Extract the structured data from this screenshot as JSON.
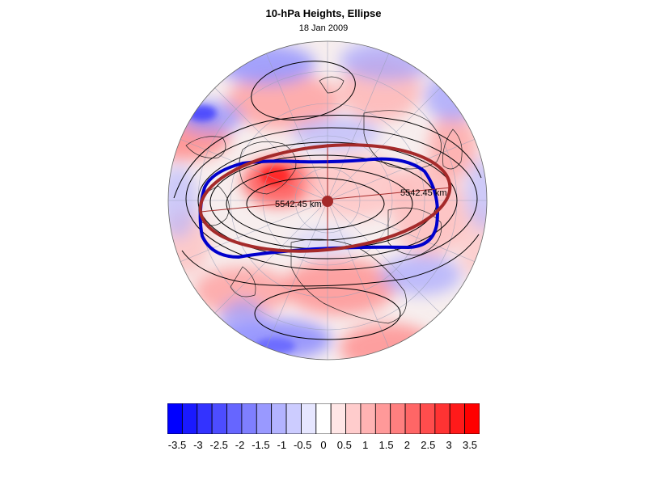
{
  "title": "10-hPa Heights, Ellipse",
  "subtitle": "18 Jan 2009",
  "ellipse_labels": {
    "semi_major": "5542.45 km",
    "semi_minor": "5542.45 km"
  },
  "colors": {
    "observed_contour": "#0000cc",
    "fitted_ellipse": "#a52a2a",
    "centroid": "#a52a2a",
    "height_contours": "#000000"
  },
  "colorbar": {
    "tick_labels": [
      "-3.5",
      "-3",
      "-2.5",
      "-2",
      "-1.5",
      "-1",
      "-0.5",
      "0",
      "0.5",
      "1",
      "1.5",
      "2",
      "2.5",
      "3",
      "3.5"
    ],
    "colors": [
      "#0000ff",
      "#1a1aff",
      "#3333ff",
      "#4d4dff",
      "#6666ff",
      "#7f7fff",
      "#9999ff",
      "#b3b3ff",
      "#ccccff",
      "#e6e6ff",
      "#ffffff",
      "#ffe6e6",
      "#ffcccc",
      "#ffb3b3",
      "#ff9999",
      "#ff7f7f",
      "#ff6666",
      "#ff4d4d",
      "#ff3333",
      "#ff1a1a",
      "#ff0000"
    ]
  }
}
